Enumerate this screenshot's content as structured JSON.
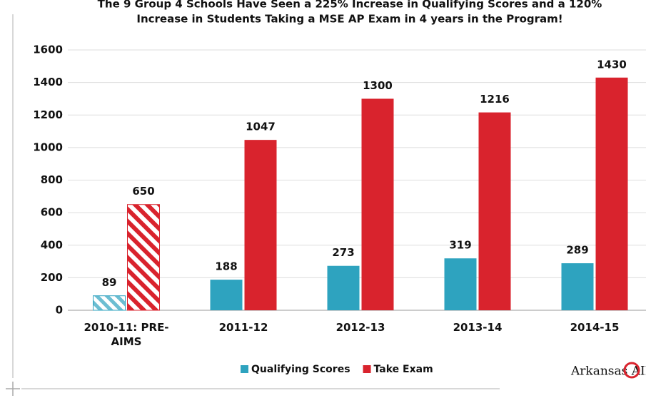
{
  "chart_data": {
    "type": "bar",
    "title": [
      "The 9 Group 4 Schools Have Seen a 225% Increase in Qualifying Scores and a 120%",
      "Increase in Students Taking a MSE AP Exam in 4 years in the Program!"
    ],
    "categories": [
      "2010-11: PRE-AIMS",
      "2011-12",
      "2012-13",
      "2013-14",
      "2014-15"
    ],
    "series": [
      {
        "name": "Qualifying Scores",
        "color": "#2ea3bf",
        "values": [
          89,
          188,
          273,
          319,
          289
        ]
      },
      {
        "name": "Take Exam",
        "color": "#d9232d",
        "values": [
          650,
          1047,
          1300,
          1216,
          1430
        ]
      }
    ],
    "hatched_categories": [
      0
    ],
    "ylim": [
      0,
      1600
    ],
    "yticks": [
      0,
      200,
      400,
      600,
      800,
      1000,
      1200,
      1400,
      1600
    ],
    "grid": true,
    "legend": "bottom",
    "logo": "Arkansas AIMS"
  }
}
